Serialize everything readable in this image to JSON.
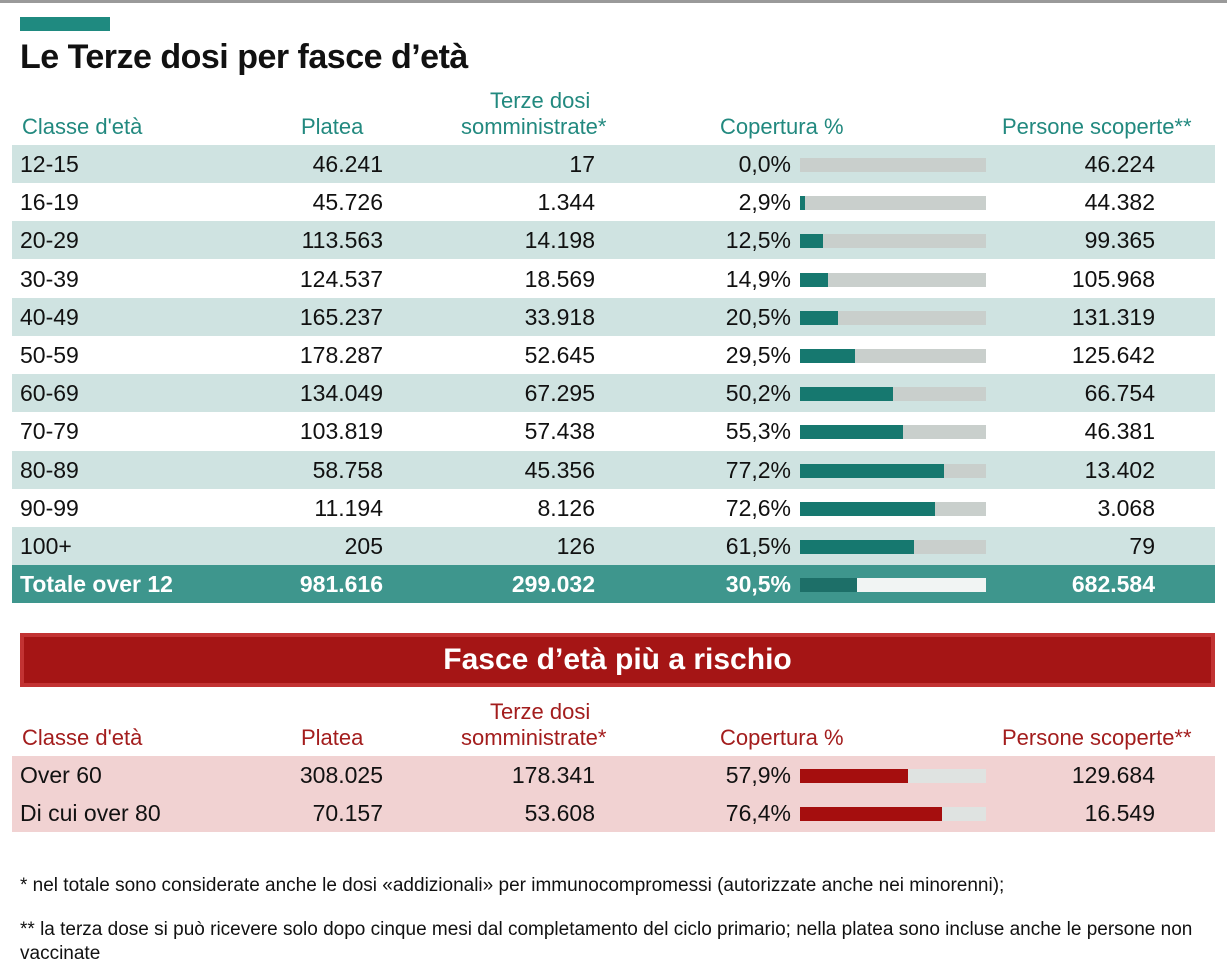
{
  "title": "Le Terze dosi per fasce d’età",
  "columns": {
    "age": "Classe d'età",
    "platea": "Platea",
    "terze_line1": "Terze dosi",
    "terze_line2": "somministrate*",
    "copertura": "Copertura %",
    "scoperte": "Persone scoperte**"
  },
  "chart_data": [
    {
      "type": "table",
      "title": "Le Terze dosi per fasce d’età",
      "bar_scale_max": 100,
      "colors": {
        "header": "#22897f",
        "band": "#cfe3e1",
        "bar": "#16786f",
        "track": "#c9cfcc",
        "total_row": "#3e968d"
      },
      "rows": [
        {
          "age": "12-15",
          "platea": "46.241",
          "terze": "17",
          "copertura_label": "0,0%",
          "copertura": 0.0,
          "scoperte": "46.224"
        },
        {
          "age": "16-19",
          "platea": "45.726",
          "terze": "1.344",
          "copertura_label": "2,9%",
          "copertura": 2.9,
          "scoperte": "44.382"
        },
        {
          "age": "20-29",
          "platea": "113.563",
          "terze": "14.198",
          "copertura_label": "12,5%",
          "copertura": 12.5,
          "scoperte": "99.365"
        },
        {
          "age": "30-39",
          "platea": "124.537",
          "terze": "18.569",
          "copertura_label": "14,9%",
          "copertura": 14.9,
          "scoperte": "105.968"
        },
        {
          "age": "40-49",
          "platea": "165.237",
          "terze": "33.918",
          "copertura_label": "20,5%",
          "copertura": 20.5,
          "scoperte": "131.319"
        },
        {
          "age": "50-59",
          "platea": "178.287",
          "terze": "52.645",
          "copertura_label": "29,5%",
          "copertura": 29.5,
          "scoperte": "125.642"
        },
        {
          "age": "60-69",
          "platea": "134.049",
          "terze": "67.295",
          "copertura_label": "50,2%",
          "copertura": 50.2,
          "scoperte": "66.754"
        },
        {
          "age": "70-79",
          "platea": "103.819",
          "terze": "57.438",
          "copertura_label": "55,3%",
          "copertura": 55.3,
          "scoperte": "46.381"
        },
        {
          "age": "80-89",
          "platea": "58.758",
          "terze": "45.356",
          "copertura_label": "77,2%",
          "copertura": 77.2,
          "scoperte": "13.402"
        },
        {
          "age": "90-99",
          "platea": "11.194",
          "terze": "8.126",
          "copertura_label": "72,6%",
          "copertura": 72.6,
          "scoperte": "3.068"
        },
        {
          "age": "100+",
          "platea": "205",
          "terze": "126",
          "copertura_label": "61,5%",
          "copertura": 61.5,
          "scoperte": "79"
        }
      ],
      "total": {
        "age": "Totale over 12",
        "platea": "981.616",
        "terze": "299.032",
        "copertura_label": "30,5%",
        "copertura": 30.5,
        "scoperte": "682.584"
      }
    },
    {
      "type": "table",
      "title": "Fasce d’età più a rischio",
      "bar_scale_max": 100,
      "colors": {
        "header": "#a31d1d",
        "band": "#f1d2d2",
        "bar": "#a50e0e",
        "track": "#dfe3e1",
        "banner": "#a51515"
      },
      "rows": [
        {
          "age": "Over 60",
          "platea": "308.025",
          "terze": "178.341",
          "copertura_label": "57,9%",
          "copertura": 57.9,
          "scoperte": "129.684"
        },
        {
          "age": "Di cui over 80",
          "platea": "70.157",
          "terze": "53.608",
          "copertura_label": "76,4%",
          "copertura": 76.4,
          "scoperte": "16.549"
        }
      ]
    }
  ],
  "notes": [
    "* nel totale sono considerate anche le dosi «addizionali» per immunocompromessi (autorizzate anche nei minorenni);",
    "** la terza dose si può ricevere solo dopo cinque mesi dal completamento del ciclo primario; nella platea sono incluse anche le persone non vaccinate"
  ]
}
